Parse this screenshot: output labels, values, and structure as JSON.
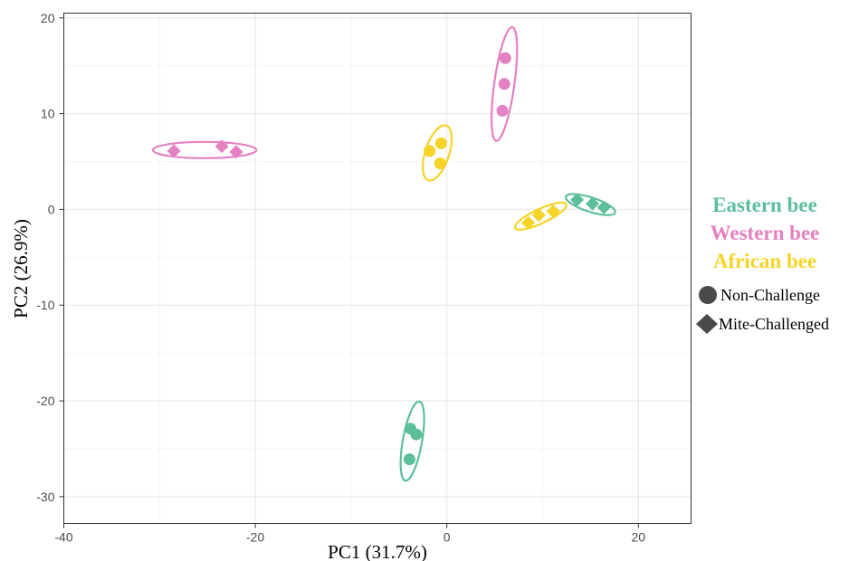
{
  "chart_data": {
    "type": "scatter",
    "xlabel": "PC1 (31.7%)",
    "ylabel": "PC2 (26.9%)",
    "xlim": [
      -40,
      25.5
    ],
    "ylim": [
      -32.8,
      20.5
    ],
    "x_ticks": [
      -40,
      -20,
      0,
      20
    ],
    "y_ticks": [
      20,
      10,
      0,
      -10,
      -20,
      -30
    ],
    "x_tick_labels": [
      "-40",
      "-20",
      "0",
      "20"
    ],
    "y_tick_labels": [
      "20",
      "10",
      "0",
      "-10",
      "-20",
      "-30"
    ],
    "grid": true,
    "legend_position": "right",
    "groups_legend": [
      {
        "name": "Eastern bee",
        "color": "#5dbf9a"
      },
      {
        "name": "Western bee",
        "color": "#e381c2"
      },
      {
        "name": "African bee",
        "color": "#f5d327"
      }
    ],
    "shapes_legend": [
      {
        "name": "Non-Challenge",
        "shape": "circle"
      },
      {
        "name": "Mite-Challenged",
        "shape": "diamond"
      }
    ],
    "series": [
      {
        "group": "Western bee",
        "shape": "circle",
        "color": "#e381c2",
        "x": [
          6.1,
          6.0,
          5.8
        ],
        "y": [
          15.8,
          13.1,
          10.3
        ],
        "ellipse": {
          "cx": 6.0,
          "cy": 13.1,
          "rx": 6.0,
          "ry": 1.05,
          "angle": -82
        }
      },
      {
        "group": "Western bee",
        "shape": "diamond",
        "color": "#e381c2",
        "x": [
          -28.5,
          -23.5,
          -22.0
        ],
        "y": [
          6.1,
          6.6,
          6.0
        ],
        "ellipse": {
          "cx": -25.3,
          "cy": 6.2,
          "rx": 5.4,
          "ry": 0.85,
          "angle": 0
        }
      },
      {
        "group": "African bee",
        "shape": "circle",
        "color": "#f5d327",
        "x": [
          -1.8,
          -0.6,
          -0.7
        ],
        "y": [
          6.1,
          6.9,
          4.8
        ],
        "ellipse": {
          "cx": -1.0,
          "cy": 5.9,
          "rx": 3.0,
          "ry": 1.25,
          "angle": -72
        }
      },
      {
        "group": "African bee",
        "shape": "diamond",
        "color": "#f5d327",
        "x": [
          8.5,
          9.6,
          11.1
        ],
        "y": [
          -1.4,
          -0.6,
          -0.2
        ],
        "ellipse": {
          "cx": 9.8,
          "cy": -0.7,
          "rx": 2.95,
          "ry": 0.75,
          "angle": -25
        }
      },
      {
        "group": "Eastern bee",
        "shape": "circle",
        "color": "#5dbf9a",
        "x": [
          -3.8,
          -3.2,
          -3.9
        ],
        "y": [
          -22.9,
          -23.5,
          -26.1
        ],
        "ellipse": {
          "cx": -3.6,
          "cy": -24.2,
          "rx": 4.2,
          "ry": 1.0,
          "angle": -80
        }
      },
      {
        "group": "Eastern bee",
        "shape": "diamond",
        "color": "#5dbf9a",
        "x": [
          13.6,
          15.2,
          16.4
        ],
        "y": [
          1.0,
          0.6,
          0.2
        ],
        "ellipse": {
          "cx": 15.0,
          "cy": 0.5,
          "rx": 2.7,
          "ry": 0.75,
          "angle": 18
        }
      }
    ]
  }
}
